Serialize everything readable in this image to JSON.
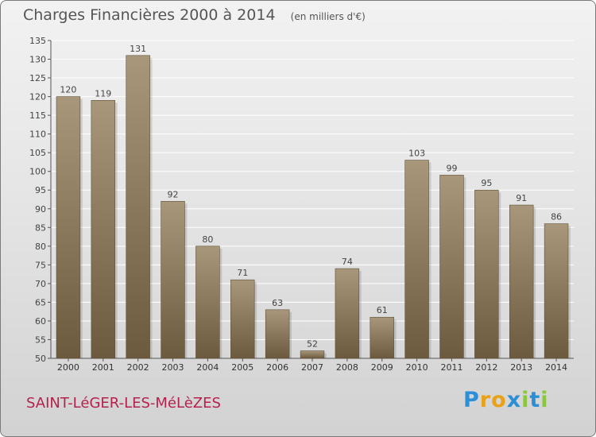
{
  "chart_data": {
    "type": "bar",
    "title": "Charges Financières 2000 à 2014",
    "unit": "(en milliers d'€)",
    "categories": [
      "2000",
      "2001",
      "2002",
      "2003",
      "2004",
      "2005",
      "2006",
      "2007",
      "2008",
      "2009",
      "2010",
      "2011",
      "2012",
      "2013",
      "2014"
    ],
    "values": [
      120,
      119,
      131,
      92,
      80,
      71,
      63,
      52,
      74,
      61,
      103,
      99,
      95,
      91,
      86
    ],
    "ylim": [
      50,
      135
    ],
    "yticks": [
      50,
      55,
      60,
      65,
      70,
      75,
      80,
      85,
      90,
      95,
      100,
      105,
      110,
      115,
      120,
      125,
      130,
      135
    ],
    "grid": true,
    "bar_color_top": "#a8977a",
    "bar_color_bottom": "#6c5a3e"
  },
  "commune": "SAINT-LéGER-LES-MéLèZES",
  "brand": {
    "text": "Proxiti",
    "letters": [
      {
        "char": "P",
        "color": "#2a8fd6"
      },
      {
        "char": "r",
        "color": "#e8a21a"
      },
      {
        "char": "o",
        "color": "#e8a21a"
      },
      {
        "char": "x",
        "color": "#2a8fd6"
      },
      {
        "char": "i",
        "color": "#8cc63f"
      },
      {
        "char": "t",
        "color": "#2a8fd6"
      },
      {
        "char": "i",
        "color": "#8cc63f"
      }
    ]
  }
}
